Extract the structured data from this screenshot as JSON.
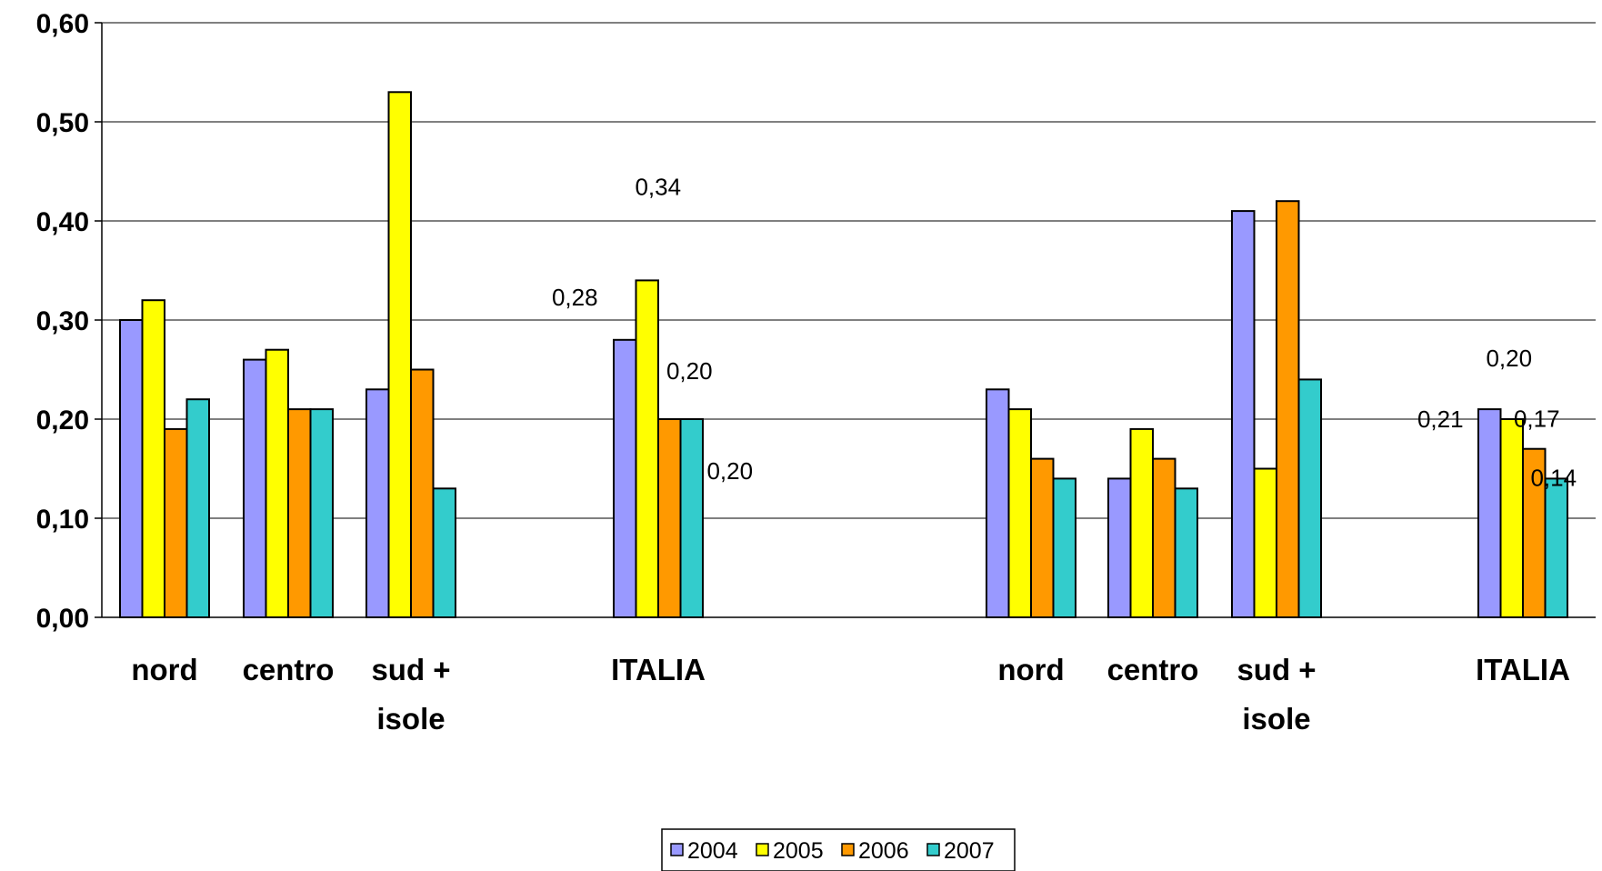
{
  "chart_data": {
    "type": "bar",
    "series": [
      {
        "name": "2004",
        "color": "#9999ff"
      },
      {
        "name": "2005",
        "color": "#ffff00"
      },
      {
        "name": "2006",
        "color": "#ff9900"
      },
      {
        "name": "2007",
        "color": "#33cccc"
      }
    ],
    "groups": [
      {
        "label": [
          "nord"
        ],
        "values": [
          0.3,
          0.32,
          0.19,
          0.22
        ]
      },
      {
        "label": [
          "centro"
        ],
        "values": [
          0.26,
          0.27,
          0.21,
          0.21
        ]
      },
      {
        "label": [
          "sud +",
          "isole"
        ],
        "values": [
          0.23,
          0.53,
          0.25,
          0.13
        ]
      },
      {
        "label": [
          "ITALIA"
        ],
        "values": [
          0.28,
          0.34,
          0.2,
          0.2
        ],
        "data_labels": [
          "0,28",
          "0,34",
          "0,20",
          "0,20"
        ]
      },
      {
        "label": [
          "nord"
        ],
        "values": [
          0.23,
          0.21,
          0.16,
          0.14
        ]
      },
      {
        "label": [
          "centro"
        ],
        "values": [
          0.14,
          0.19,
          0.16,
          0.13
        ]
      },
      {
        "label": [
          "sud +",
          "isole"
        ],
        "values": [
          0.41,
          0.15,
          0.42,
          0.24
        ]
      },
      {
        "label": [
          "ITALIA"
        ],
        "values": [
          0.21,
          0.2,
          0.17,
          0.14
        ],
        "data_labels": [
          "0,21",
          "0,20",
          "0,17",
          "0,14"
        ]
      }
    ],
    "ylim": [
      0,
      0.6
    ],
    "yticks": [
      "0,00",
      "0,10",
      "0,20",
      "0,30",
      "0,40",
      "0,50",
      "0,60"
    ],
    "grid": true,
    "legend_position": "bottom-center"
  }
}
